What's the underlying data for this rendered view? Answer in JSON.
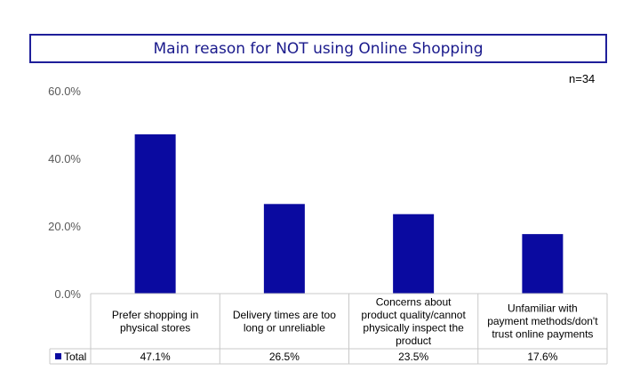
{
  "chart_data": {
    "type": "bar",
    "title": "Main reason for NOT using Online Shopping",
    "annotation": "n=34",
    "categories": [
      "Prefer shopping in physical stores",
      "Delivery times are too long or unreliable",
      "Concerns about product quality/cannot physically inspect the product",
      "Unfamiliar with payment methods/don't trust online payments"
    ],
    "category_lines": [
      [
        "Prefer shopping in",
        "physical stores"
      ],
      [
        "Delivery times are too",
        "long or unreliable"
      ],
      [
        "Concerns about",
        "product quality/cannot",
        "physically inspect the",
        "product"
      ],
      [
        "Unfamiliar with",
        "payment methods/don't",
        "trust online payments"
      ]
    ],
    "series": [
      {
        "name": "Total",
        "values": [
          47.1,
          26.5,
          23.5,
          17.6
        ],
        "labels": [
          "47.1%",
          "26.5%",
          "23.5%",
          "17.6%"
        ]
      }
    ],
    "yticks": [
      "0.0%",
      "20.0%",
      "40.0%",
      "60.0%"
    ],
    "ylim": [
      0,
      60
    ],
    "colors": {
      "bar": "#0a0aa0",
      "title": "#1a1a8c",
      "grid": "#c8c8c8"
    },
    "grid": false,
    "legend": "data-table"
  }
}
